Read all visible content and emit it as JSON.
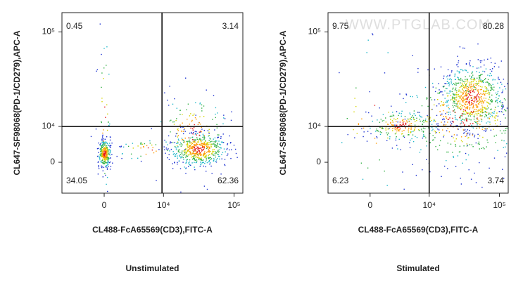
{
  "chart_data": [
    {
      "type": "flow-quadrant",
      "caption": "Unstimulated",
      "x_label": "CL488-FcA65569(CD3),FITC-A",
      "y_label": "CL647-SF98068(PD-1/CD279),APC-A",
      "xlim": [
        -5500,
        133000
      ],
      "ylim": [
        -8400,
        153000
      ],
      "xticks": [
        0,
        {
          "value": 10000,
          "label": "10⁴"
        },
        {
          "value": 100000,
          "label": "10⁵"
        }
      ],
      "yticks": [
        0,
        {
          "value": 10000,
          "label": "10⁴"
        },
        {
          "value": 100000,
          "label": "10⁵"
        }
      ],
      "gate_x": 9500,
      "gate_y": 10000,
      "quadrants": {
        "upper_left": 0.45,
        "upper_right": 3.14,
        "lower_left": 34.05,
        "lower_right": 62.36
      }
    },
    {
      "type": "flow-quadrant",
      "caption": "Stimulated",
      "x_label": "CL488-FcA65569(CD3),FITC-A",
      "y_label": "CL647-SF98068(PD-1/CD279),APC-A",
      "xlim": [
        -5500,
        133000
      ],
      "ylim": [
        -8400,
        153000
      ],
      "xticks": [
        0,
        {
          "value": 10000,
          "label": "10⁴"
        },
        {
          "value": 100000,
          "label": "10⁵"
        }
      ],
      "yticks": [
        0,
        {
          "value": 10000,
          "label": "10⁴"
        },
        {
          "value": 100000,
          "label": "10⁵"
        }
      ],
      "gate_x": 10000,
      "gate_y": 10000,
      "quadrants": {
        "upper_left": 9.75,
        "upper_right": 80.28,
        "lower_left": 6.23,
        "lower_right": 3.74
      },
      "watermark": "WWW.PTGLAB.COM"
    }
  ]
}
